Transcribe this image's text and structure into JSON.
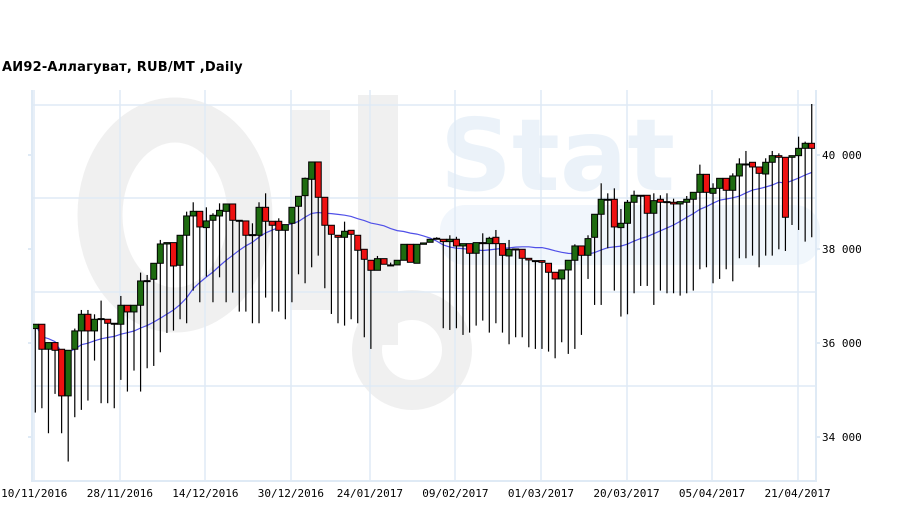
{
  "title": "АИ92-Аллагуват,  RUB/MT ,Daily",
  "watermark": "Oil Stat",
  "chart_data": {
    "type": "candlestick",
    "title": "АИ92-Аллагуват,  RUB/MT ,Daily",
    "ylim": [
      33100,
      41400
    ],
    "y_ticks": [
      "34 000",
      "36 000",
      "38 000",
      "40 000"
    ],
    "y_tick_values": [
      34000,
      36000,
      38000,
      40000
    ],
    "x_ticks": [
      {
        "index": 0,
        "label": "10/11/2016"
      },
      {
        "index": 13,
        "label": "28/11/2016"
      },
      {
        "index": 26,
        "label": "14/12/2016"
      },
      {
        "index": 39,
        "label": "30/12/2016"
      },
      {
        "index": 51,
        "label": "24/01/2017"
      },
      {
        "index": 64,
        "label": "09/02/2017"
      },
      {
        "index": 77,
        "label": "01/03/2017"
      },
      {
        "index": 90,
        "label": "20/03/2017"
      },
      {
        "index": 103,
        "label": "05/04/2017"
      },
      {
        "index": 116,
        "label": "21/04/2017"
      }
    ],
    "grid": true,
    "y_axis_side": "right",
    "colors": {
      "up": "#1e6b10",
      "down": "#ee1111",
      "moving_average": "#5050e8",
      "grid": "#dfeaf5"
    },
    "ohlc": [
      [
        36307,
        36399,
        34520,
        36399
      ],
      [
        36399,
        36399,
        34612,
        35867
      ],
      [
        35867,
        36009,
        34080,
        36009
      ],
      [
        36009,
        36009,
        34917,
        35845
      ],
      [
        35867,
        35867,
        34080,
        34875
      ],
      [
        34875,
        35845,
        33478,
        35845
      ],
      [
        35867,
        36307,
        34421,
        36257
      ],
      [
        36257,
        36703,
        34577,
        36611
      ],
      [
        36611,
        36703,
        34775,
        36257
      ],
      [
        36257,
        36611,
        35626,
        36505
      ],
      [
        36519,
        36902,
        34719,
        36519
      ],
      [
        36505,
        36505,
        34719,
        36420
      ],
      [
        36420,
        36420,
        34612,
        36420
      ],
      [
        36399,
        37001,
        35215,
        36803
      ],
      [
        36803,
        36803,
        34967,
        36661
      ],
      [
        36661,
        36803,
        35413,
        36803
      ],
      [
        36803,
        37498,
        34967,
        37320
      ],
      [
        37327,
        37448,
        35463,
        37327
      ],
      [
        37356,
        37696,
        35512,
        37696
      ],
      [
        37696,
        38193,
        35803,
        38107
      ],
      [
        38107,
        38136,
        36214,
        38136
      ],
      [
        38136,
        38136,
        36264,
        37639
      ],
      [
        37654,
        38292,
        36505,
        38292
      ],
      [
        38292,
        38795,
        36420,
        38703
      ],
      [
        38703,
        38994,
        37115,
        38802
      ],
      [
        38802,
        38802,
        36867,
        38469
      ],
      [
        38455,
        38887,
        37413,
        38597
      ],
      [
        38611,
        38760,
        36867,
        38717
      ],
      [
        38703,
        38972,
        37398,
        38823
      ],
      [
        38802,
        38958,
        36867,
        38958
      ],
      [
        38958,
        38958,
        37072,
        38611
      ],
      [
        38611,
        38611,
        36668,
        38597
      ],
      [
        38597,
        38597,
        36668,
        38292
      ],
      [
        38306,
        38547,
        36420,
        38306
      ],
      [
        38292,
        38994,
        36420,
        38887
      ],
      [
        38887,
        39185,
        36966,
        38590
      ],
      [
        38590,
        38590,
        36668,
        38505
      ],
      [
        38590,
        38653,
        36668,
        38398
      ],
      [
        38398,
        38519,
        36505,
        38519
      ],
      [
        38547,
        38887,
        36867,
        38887
      ],
      [
        38909,
        39121,
        37462,
        39121
      ],
      [
        39135,
        39520,
        37271,
        39504
      ],
      [
        39483,
        39852,
        37611,
        39852
      ],
      [
        39852,
        39852,
        37859,
        39100
      ],
      [
        39100,
        39100,
        37165,
        38505
      ],
      [
        38505,
        38505,
        36618,
        38313
      ],
      [
        38292,
        38292,
        36420,
        38249
      ],
      [
        38249,
        38582,
        36370,
        38377
      ],
      [
        38398,
        38398,
        36505,
        38313
      ],
      [
        38292,
        38292,
        36420,
        37973
      ],
      [
        37994,
        37994,
        36122,
        37781
      ],
      [
        37760,
        37760,
        35874,
        37547
      ],
      [
        37547,
        37852,
        37547,
        37795
      ],
      [
        37795,
        37795,
        37675,
        37675
      ],
      [
        37661,
        37710,
        37661,
        37661
      ],
      [
        37661,
        37760,
        37661,
        37760
      ],
      [
        37760,
        38100,
        37760,
        38100
      ],
      [
        38100,
        38100,
        37717,
        37717
      ],
      [
        37696,
        38100,
        37696,
        38100
      ],
      [
        38100,
        38129,
        38100,
        38129
      ],
      [
        38143,
        38207,
        38143,
        38207
      ],
      [
        38228,
        38250,
        38228,
        38228
      ],
      [
        38207,
        38207,
        36314,
        38157
      ],
      [
        38157,
        38292,
        36278,
        38207
      ],
      [
        38207,
        38260,
        36314,
        38065
      ],
      [
        38065,
        38114,
        36172,
        38114
      ],
      [
        38114,
        38114,
        36221,
        37909
      ],
      [
        37909,
        38136,
        36370,
        38136
      ],
      [
        38136,
        38334,
        36477,
        38114
      ],
      [
        38114,
        38260,
        36221,
        38228
      ],
      [
        38249,
        38405,
        36420,
        38114
      ],
      [
        38114,
        38114,
        36221,
        37866
      ],
      [
        37852,
        38193,
        35973,
        37994
      ],
      [
        38001,
        38001,
        36122,
        38001
      ],
      [
        37994,
        37994,
        36122,
        37802
      ],
      [
        37802,
        37802,
        35909,
        37767
      ],
      [
        37753,
        37753,
        35874,
        37753
      ],
      [
        37753,
        37753,
        35874,
        37717
      ],
      [
        37696,
        37696,
        35817,
        37505
      ],
      [
        37505,
        37505,
        35675,
        37363
      ],
      [
        37363,
        37554,
        36016,
        37554
      ],
      [
        37554,
        37760,
        35768,
        37760
      ],
      [
        37760,
        38100,
        35874,
        38065
      ],
      [
        38065,
        38065,
        36172,
        37866
      ],
      [
        37866,
        38292,
        37363,
        38221
      ],
      [
        38249,
        38739,
        36810,
        38739
      ],
      [
        38739,
        39398,
        36810,
        39058
      ],
      [
        39058,
        39185,
        38015,
        39058
      ],
      [
        39058,
        39291,
        37115,
        38469
      ],
      [
        38455,
        38852,
        36562,
        38547
      ],
      [
        38547,
        39043,
        36611,
        38994
      ],
      [
        38994,
        39242,
        37058,
        39143
      ],
      [
        39143,
        39143,
        37214,
        39143
      ],
      [
        39143,
        39143,
        37214,
        38760
      ],
      [
        38760,
        39185,
        36810,
        39029
      ],
      [
        39058,
        39143,
        37115,
        38994
      ],
      [
        39008,
        39185,
        37058,
        39008
      ],
      [
        38994,
        39071,
        37058,
        38958
      ],
      [
        38958,
        39008,
        37008,
        39008
      ],
      [
        38994,
        39128,
        37058,
        39058
      ],
      [
        39058,
        39206,
        37115,
        39206
      ],
      [
        39206,
        39795,
        37569,
        39589
      ],
      [
        39589,
        39589,
        37611,
        39206
      ],
      [
        39185,
        39398,
        37271,
        39291
      ],
      [
        39291,
        39504,
        37363,
        39504
      ],
      [
        39504,
        39504,
        37569,
        39249
      ],
      [
        39249,
        39610,
        37313,
        39554
      ],
      [
        39554,
        39930,
        37803,
        39809
      ],
      [
        39809,
        40086,
        37803,
        39809
      ],
      [
        39845,
        39845,
        37859,
        39745
      ],
      [
        39745,
        39745,
        37611,
        39610
      ],
      [
        39596,
        39930,
        37859,
        39845
      ],
      [
        39845,
        40086,
        37859,
        39986
      ],
      [
        39986,
        40036,
        37994,
        39951
      ],
      [
        39951,
        39951,
        37958,
        38675
      ],
      [
        39951,
        39986,
        38511,
        39986
      ],
      [
        39986,
        40390,
        38405,
        40142
      ],
      [
        40142,
        40284,
        38157,
        40249
      ],
      [
        40249,
        41085,
        38249,
        40142
      ]
    ]
  }
}
